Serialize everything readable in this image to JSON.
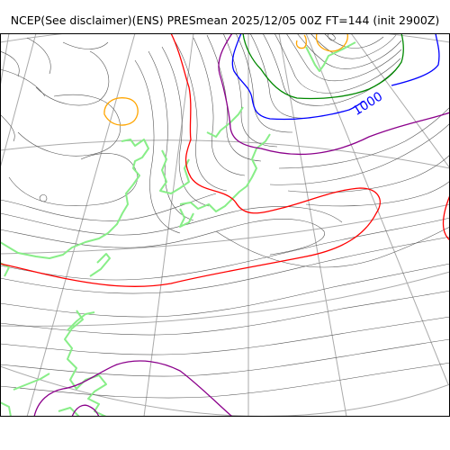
{
  "title": "NCEP(See disclaimer)(ENS) PRESmean 2025/12/05 00Z FT=144 (init 2900Z)",
  "contour_labels": [
    {
      "text": "1000",
      "color": "#0000ff"
    }
  ],
  "colors": {
    "isobar": "#555555",
    "graticule": "#aaaaaa",
    "coastline": "#88ee88",
    "contour_red": "#ff0000",
    "contour_blue": "#0000ff",
    "contour_green": "#008800",
    "contour_purple": "#8b008b",
    "contour_orange": "#ffa500",
    "frame": "#000000"
  }
}
